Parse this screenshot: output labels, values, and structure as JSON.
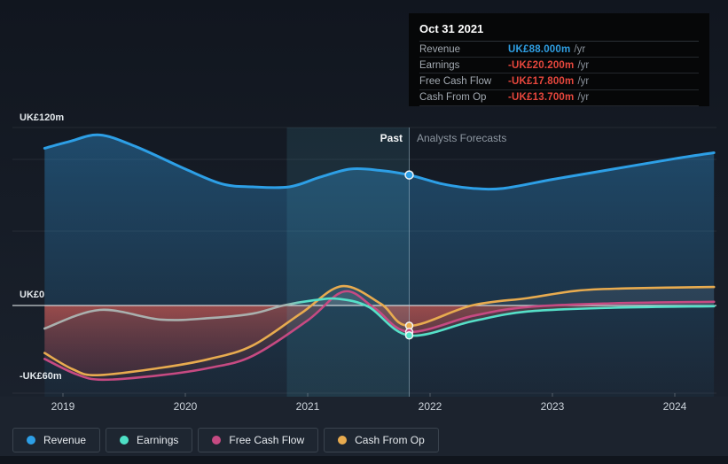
{
  "tooltip": {
    "date": "Oct 31 2021",
    "rows": [
      {
        "key": "revenue",
        "label": "Revenue",
        "value": "UK£88.000m",
        "suffix": "/yr",
        "value_color": "#2f9fe3"
      },
      {
        "key": "earnings",
        "label": "Earnings",
        "value": "-UK£20.200m",
        "suffix": "/yr",
        "value_color": "#e7473d"
      },
      {
        "key": "fcf",
        "label": "Free Cash Flow",
        "value": "-UK£17.800m",
        "suffix": "/yr",
        "value_color": "#e7473d"
      },
      {
        "key": "cashop",
        "label": "Cash From Op",
        "value": "-UK£13.700m",
        "suffix": "/yr",
        "value_color": "#e7473d"
      }
    ]
  },
  "annotations": {
    "past_label": "Past",
    "forecast_label": "Analysts Forecasts"
  },
  "axis": {
    "y_labels": [
      {
        "text": "UK£120m",
        "value": 120
      },
      {
        "text": "UK£0",
        "value": 0
      },
      {
        "text": "-UK£60m",
        "value": -60
      }
    ],
    "x_labels": [
      {
        "text": "2019",
        "year": 2019
      },
      {
        "text": "2020",
        "year": 2020
      },
      {
        "text": "2021",
        "year": 2021
      },
      {
        "text": "2022",
        "year": 2022
      },
      {
        "text": "2023",
        "year": 2023
      },
      {
        "text": "2024",
        "year": 2024
      }
    ]
  },
  "legend": [
    {
      "key": "revenue",
      "label": "Revenue",
      "color": "#2d9fe6"
    },
    {
      "key": "earnings",
      "label": "Earnings",
      "color": "#4ee0c6"
    },
    {
      "key": "fcf",
      "label": "Free Cash Flow",
      "color": "#c64a82"
    },
    {
      "key": "cashop",
      "label": "Cash From Op",
      "color": "#e8ab4f"
    }
  ],
  "chart_data": {
    "type": "area",
    "x_unit": "fiscal year (decimal)",
    "y_unit": "UK£ millions per year",
    "xlim": [
      2018.85,
      2024.32
    ],
    "ylim": [
      -72,
      120
    ],
    "zero_line": 0,
    "past_forecast_divider_x": 2021.83,
    "highlight_band": {
      "from": 2020.83,
      "to": 2021.83
    },
    "marker": {
      "x": 2021.83,
      "revenue": 88.0,
      "earnings": -20.2,
      "fcf": -17.8,
      "cashop": -13.7
    },
    "series": [
      {
        "name": "Revenue",
        "key": "revenue",
        "color": "#2d9fe6",
        "points": [
          [
            2018.85,
            106
          ],
          [
            2019.05,
            110.5
          ],
          [
            2019.3,
            115
          ],
          [
            2019.6,
            107
          ],
          [
            2020.0,
            92
          ],
          [
            2020.3,
            82
          ],
          [
            2020.55,
            80
          ],
          [
            2020.85,
            80
          ],
          [
            2021.1,
            86.5
          ],
          [
            2021.35,
            92
          ],
          [
            2021.6,
            91
          ],
          [
            2021.83,
            88
          ],
          [
            2022.1,
            82
          ],
          [
            2022.35,
            79
          ],
          [
            2022.6,
            79
          ],
          [
            2023.0,
            85
          ],
          [
            2023.5,
            92
          ],
          [
            2024.0,
            99
          ],
          [
            2024.32,
            103
          ]
        ]
      },
      {
        "name": "Earnings",
        "key": "earnings",
        "color": "#55e0c8",
        "past_negative_color": "#a9b0ae",
        "points": [
          [
            2018.85,
            -15.5
          ],
          [
            2019.3,
            -3
          ],
          [
            2019.8,
            -9.5
          ],
          [
            2020.2,
            -8.5
          ],
          [
            2020.55,
            -5.5
          ],
          [
            2020.8,
            0
          ],
          [
            2021.05,
            3.5
          ],
          [
            2021.25,
            4.5
          ],
          [
            2021.5,
            -1
          ],
          [
            2021.83,
            -20.2
          ],
          [
            2022.35,
            -10.5
          ],
          [
            2022.8,
            -4
          ],
          [
            2023.5,
            -1.5
          ],
          [
            2024.32,
            -0.5
          ]
        ]
      },
      {
        "name": "Free Cash Flow",
        "key": "fcf",
        "color": "#c64a82",
        "points": [
          [
            2018.85,
            -36
          ],
          [
            2019.1,
            -46
          ],
          [
            2019.32,
            -50
          ],
          [
            2019.8,
            -47
          ],
          [
            2020.2,
            -42
          ],
          [
            2020.55,
            -34
          ],
          [
            2021.0,
            -10
          ],
          [
            2021.3,
            9.5
          ],
          [
            2021.55,
            -2
          ],
          [
            2021.83,
            -17.8
          ],
          [
            2022.35,
            -7
          ],
          [
            2022.8,
            -1
          ],
          [
            2023.5,
            1.5
          ],
          [
            2024.32,
            2.5
          ]
        ]
      },
      {
        "name": "Cash From Op",
        "key": "cashop",
        "color": "#e8ab4f",
        "points": [
          [
            2018.85,
            -32
          ],
          [
            2019.08,
            -43
          ],
          [
            2019.28,
            -47
          ],
          [
            2019.8,
            -42
          ],
          [
            2020.2,
            -36
          ],
          [
            2020.55,
            -27
          ],
          [
            2020.95,
            -5
          ],
          [
            2021.28,
            13
          ],
          [
            2021.6,
            1
          ],
          [
            2021.83,
            -13.7
          ],
          [
            2022.34,
            0
          ],
          [
            2022.8,
            5
          ],
          [
            2023.2,
            10
          ],
          [
            2023.6,
            11.5
          ],
          [
            2024.32,
            12.5
          ]
        ]
      }
    ],
    "fills": {
      "revenue_area": "blue gradient below revenue line",
      "negative_area": "red gradient between 0 and negative cash/earnings lines",
      "positive_area": "gray tint between 0 and positive cash/earnings lines"
    },
    "legend_position": "bottom-left",
    "grid": true
  }
}
